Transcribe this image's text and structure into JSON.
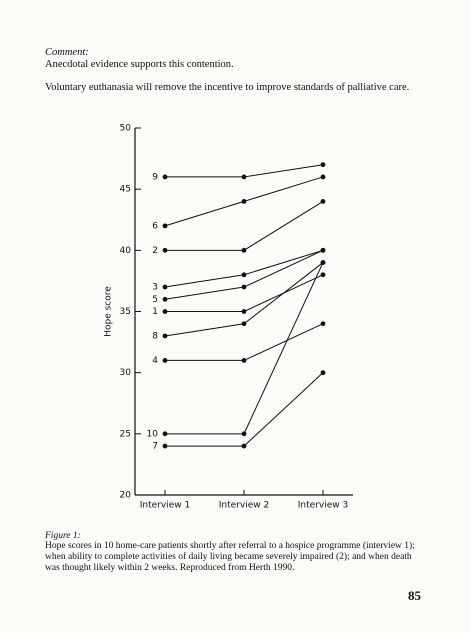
{
  "comment": {
    "heading": "Comment:",
    "text": "Anecdotal evidence supports this contention."
  },
  "statement": "Voluntary euthanasia will remove the incentive to improve standards of palliative care.",
  "chart_data": {
    "type": "line",
    "ylabel": "Hope score",
    "categories": [
      "Interview 1",
      "Interview 2",
      "Interview 3"
    ],
    "ylim": [
      20,
      50
    ],
    "yticks": [
      20,
      25,
      30,
      35,
      40,
      45,
      50
    ],
    "color": "#111111",
    "series": [
      {
        "name": "9",
        "values": [
          46,
          46,
          47
        ]
      },
      {
        "name": "6",
        "values": [
          42,
          44,
          46
        ]
      },
      {
        "name": "2",
        "values": [
          40,
          40,
          44
        ]
      },
      {
        "name": "3",
        "values": [
          37,
          38,
          40
        ]
      },
      {
        "name": "5",
        "values": [
          36,
          37,
          40
        ]
      },
      {
        "name": "1",
        "values": [
          35,
          35,
          38
        ]
      },
      {
        "name": "8",
        "values": [
          33,
          34,
          39
        ]
      },
      {
        "name": "4",
        "values": [
          31,
          31,
          34
        ]
      },
      {
        "name": "10",
        "values": [
          25,
          25,
          39
        ]
      },
      {
        "name": "7",
        "values": [
          24,
          24,
          30
        ]
      }
    ]
  },
  "figure": {
    "label": "Figure 1:",
    "caption": "Hope scores in 10 home-care patients shortly after referral to a hospice programme (interview 1); when ability to complete activities of daily living became severely impaired (2); and when death was thought likely within 2 weeks. Reproduced from Herth 1990."
  },
  "page_number": "85"
}
